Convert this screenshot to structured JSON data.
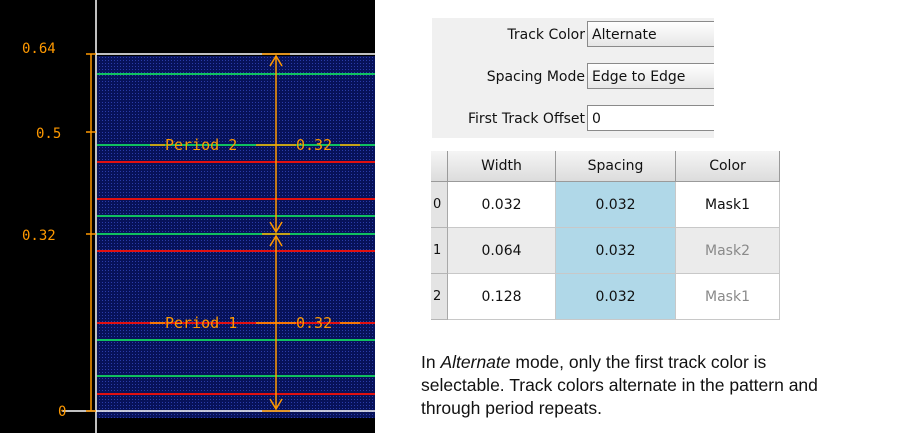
{
  "layout_view": {
    "axis_labels": [
      "0.64",
      "0.5",
      "0.32",
      "0"
    ],
    "annotations": [
      {
        "label": "Period 2",
        "value": "0.32"
      },
      {
        "label": "Period 1",
        "value": "0.32"
      }
    ],
    "colors": {
      "background": "#000000",
      "fill": "#0a1a6a",
      "mask1_line": "#e01010",
      "mask2_line": "#10c060",
      "dimension": "#ff9900",
      "axis": "#ffffff"
    }
  },
  "properties": {
    "track_color": {
      "label": "Track Color",
      "value": "Alternate"
    },
    "spacing_mode": {
      "label": "Spacing Mode",
      "value": "Edge to Edge"
    },
    "first_track_offset": {
      "label": "First Track Offset",
      "value": "0"
    }
  },
  "table": {
    "headers": [
      "Width",
      "Spacing",
      "Color"
    ],
    "rows": [
      {
        "index": "0",
        "width": "0.032",
        "spacing": "0.032",
        "color": "Mask1",
        "color_enabled": true
      },
      {
        "index": "1",
        "width": "0.064",
        "spacing": "0.032",
        "color": "Mask2",
        "color_enabled": false
      },
      {
        "index": "2",
        "width": "0.128",
        "spacing": "0.032",
        "color": "Mask1",
        "color_enabled": false
      }
    ]
  },
  "caption": {
    "part1": "In ",
    "mode": "Alternate",
    "part2": " mode, only the first track color is selectable. Track colors alternate in the pattern and through period repeats."
  }
}
